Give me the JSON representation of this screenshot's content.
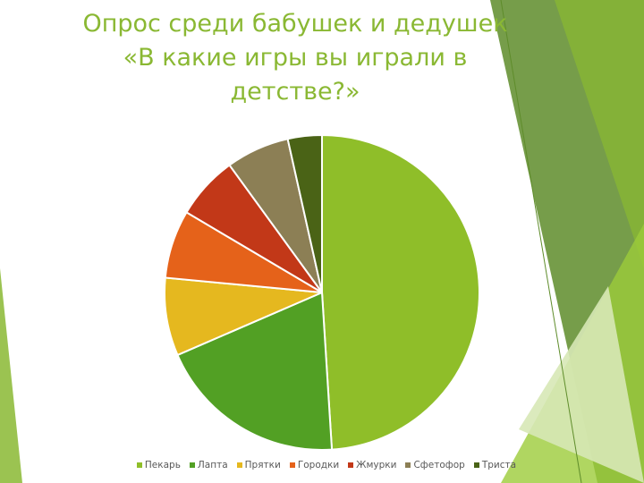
{
  "title_lines": [
    "Опрос среди бабушек и дедушек",
    "«В какие игры вы играли в",
    "детстве?»"
  ],
  "chart_data": {
    "type": "pie",
    "title": "Опрос среди бабушек и дедушек «В какие игры вы играли в детстве?»",
    "categories": [
      "Пекарь",
      "Лапта",
      "Прятки",
      "Городки",
      "Жмурки",
      "Сфетофор",
      "Триста"
    ],
    "values": [
      49,
      19.5,
      8,
      7,
      6.5,
      6.5,
      3.5
    ],
    "colors": [
      "#8fbe29",
      "#52a024",
      "#e5b81f",
      "#e5621a",
      "#c23818",
      "#8c7f55",
      "#4a6316"
    ],
    "legend_position": "bottom"
  }
}
